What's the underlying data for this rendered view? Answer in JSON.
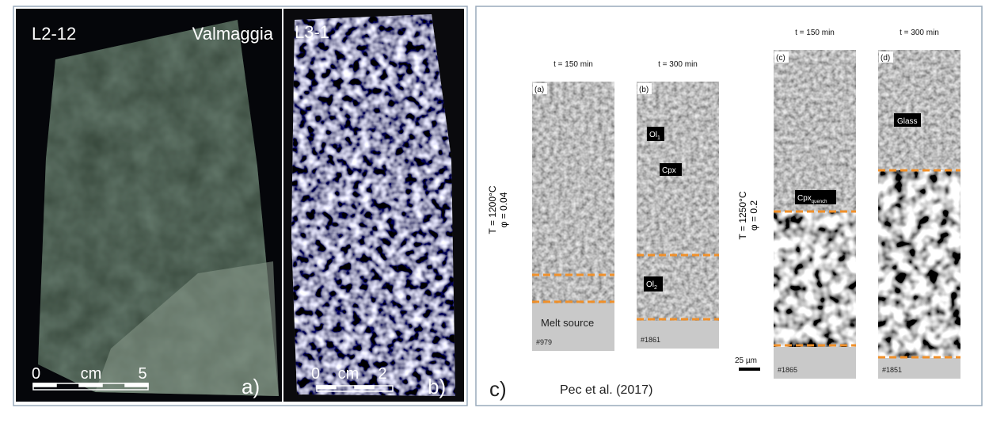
{
  "left_panel": {
    "rock_a": {
      "sample": "L2-12",
      "locality": "Valmaggia",
      "scale_zero": "0",
      "scale_unit": "cm",
      "scale_max": "5",
      "panel_label": "a)"
    },
    "rock_b": {
      "sample": "L3-1",
      "scale_zero": "0",
      "scale_unit": "cm",
      "scale_max": "2",
      "panel_label": "b)"
    }
  },
  "right_panel": {
    "panel_label": "c)",
    "citation": "Pec et al. (2017)",
    "condition_1": {
      "temperature": "T = 1200°C",
      "porosity": "φ = 0.04"
    },
    "condition_2": {
      "temperature": "T = 1250°C",
      "porosity": "φ = 0.2"
    },
    "columns": [
      {
        "time": "t = 150 min",
        "label": "(a)",
        "sample": "#979"
      },
      {
        "time": "t = 300 min",
        "label": "(b)",
        "sample": "#1861"
      },
      {
        "time": "t = 150 min",
        "label": "(c)",
        "sample": "#1865"
      },
      {
        "time": "t = 300 min",
        "label": "(d)",
        "sample": "#1851"
      }
    ],
    "annotations": {
      "ol1": {
        "text": "Ol",
        "sub": "1"
      },
      "cpx": "Cpx",
      "ol2": {
        "text": "Ol",
        "sub": "2"
      },
      "melt_source": "Melt source",
      "glass": "Glass",
      "cpx_quench": {
        "text": "Cpx",
        "sub": "quench"
      }
    },
    "scale_bar": "25 µm"
  }
}
